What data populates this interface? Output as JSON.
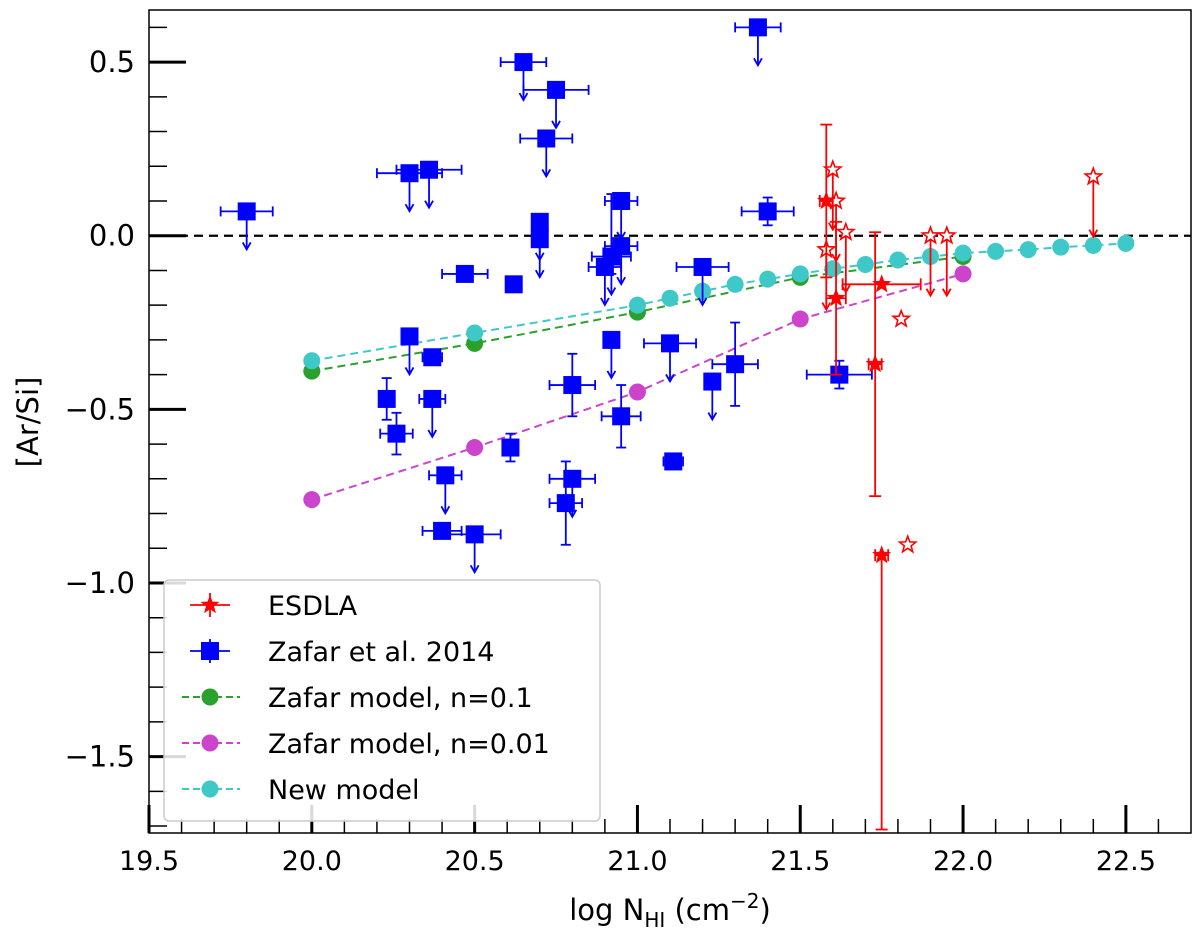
{
  "chart_data": {
    "type": "scatter",
    "xlabel": "log N",
    "xlabel_sub": "HI",
    "xlabel_unit": " (cm",
    "xlabel_unit_sup": "−2",
    "xlabel_unit_end": ")",
    "ylabel": "[Ar/Si]",
    "xlim": [
      19.5,
      22.7
    ],
    "ylim": [
      -1.72,
      0.65
    ],
    "xticks": [
      19.5,
      20.0,
      20.5,
      21.0,
      21.5,
      22.0,
      22.5
    ],
    "xtick_labels": [
      "19.5",
      "20.0",
      "20.5",
      "21.0",
      "21.5",
      "22.0",
      "22.5"
    ],
    "yticks": [
      0.5,
      0.0,
      -0.5,
      -1.0,
      -1.5
    ],
    "ytick_labels": [
      "0.5",
      "0.0",
      "−0.5",
      "−1.0",
      "−1.5"
    ],
    "reference_line": {
      "y": 0.0,
      "style": "dashed",
      "color": "#000000"
    },
    "legend": {
      "position": "lower-left",
      "entries": [
        {
          "label": "ESDLA",
          "marker": "star",
          "color": "#ff0000"
        },
        {
          "label": "Zafar et al. 2014",
          "marker": "square",
          "color": "#0000ff"
        },
        {
          "label": "Zafar model, n=0.1",
          "marker": "circle-dashed",
          "color": "#2ca02c"
        },
        {
          "label": "Zafar model, n=0.01",
          "marker": "circle-dashed",
          "color": "#cc44cc"
        },
        {
          "label": "New model",
          "marker": "circle-dashed",
          "color": "#3fc8c8"
        }
      ]
    },
    "series": [
      {
        "name": "ESDLA",
        "color": "#ff0000",
        "marker": "star",
        "detections": [
          {
            "x": 21.58,
            "y": 0.1,
            "xerr": 0.02,
            "yerr_up": 0.22,
            "yerr_low": 0.22
          },
          {
            "x": 21.61,
            "y": -0.18,
            "xerr": 0.03,
            "yerr_up": 0.22,
            "yerr_low": 0.22
          },
          {
            "x": 21.73,
            "y": -0.37,
            "xerr": 0.02,
            "yerr_up": 0.38,
            "yerr_low": 0.38
          },
          {
            "x": 21.75,
            "y": -0.14,
            "xerr": 0.12,
            "yerr_up": 0.0,
            "yerr_low": 0.0
          },
          {
            "x": 21.75,
            "y": -0.92,
            "xerr": 0.02,
            "yerr_up": 0.0,
            "yerr_low": 0.79
          }
        ],
        "upper_limits": [
          {
            "x": 21.58,
            "y": -0.04
          },
          {
            "x": 21.6,
            "y": 0.19
          },
          {
            "x": 21.61,
            "y": 0.1
          },
          {
            "x": 21.64,
            "y": 0.01
          },
          {
            "x": 21.9,
            "y": 0.0
          },
          {
            "x": 21.95,
            "y": 0.0
          },
          {
            "x": 22.4,
            "y": 0.17
          }
        ],
        "open_markers": [
          {
            "x": 21.81,
            "y": -0.24
          },
          {
            "x": 21.83,
            "y": -0.89
          }
        ]
      },
      {
        "name": "Zafar et al. 2014",
        "color": "#0000ff",
        "marker": "square",
        "points": [
          {
            "x": 19.8,
            "y": 0.07,
            "xerr": 0.08,
            "lim": true
          },
          {
            "x": 20.3,
            "y": 0.18,
            "xerr": 0.1,
            "lim": true
          },
          {
            "x": 20.36,
            "y": 0.19,
            "xerr": 0.1,
            "lim": true
          },
          {
            "x": 20.65,
            "y": 0.5,
            "xerr": 0.07,
            "lim": true
          },
          {
            "x": 20.75,
            "y": 0.42,
            "xerr": 0.1,
            "lim": true
          },
          {
            "x": 20.72,
            "y": 0.28,
            "xerr": 0.08,
            "lim": true
          },
          {
            "x": 20.7,
            "y": 0.04,
            "lim": true
          },
          {
            "x": 20.7,
            "y": -0.01,
            "lim": true
          },
          {
            "x": 21.37,
            "y": 0.6,
            "xerr": 0.07,
            "lim": true
          },
          {
            "x": 21.4,
            "y": 0.07,
            "xerr": 0.08,
            "yerr": 0.04
          },
          {
            "x": 20.47,
            "y": -0.11,
            "xerr": 0.07
          },
          {
            "x": 20.62,
            "y": -0.14
          },
          {
            "x": 20.95,
            "y": 0.1,
            "xerr": 0.05,
            "lim": true
          },
          {
            "x": 20.95,
            "y": -0.03,
            "xerr": 0.05,
            "lim": true
          },
          {
            "x": 20.92,
            "y": -0.06,
            "xerr": 0.06,
            "yerr_up": 0.18,
            "yerr_low": 0.05,
            "lim": true
          },
          {
            "x": 20.9,
            "y": -0.09,
            "xerr": 0.05,
            "lim": true
          },
          {
            "x": 21.2,
            "y": -0.09,
            "xerr": 0.08,
            "lim": true
          },
          {
            "x": 20.3,
            "y": -0.29,
            "lim": true
          },
          {
            "x": 20.92,
            "y": -0.3,
            "lim": true
          },
          {
            "x": 20.37,
            "y": -0.35,
            "xerr": 0.03
          },
          {
            "x": 21.1,
            "y": -0.31,
            "xerr": 0.08,
            "lim": true
          },
          {
            "x": 20.23,
            "y": -0.47,
            "yerr": 0.06
          },
          {
            "x": 20.37,
            "y": -0.47,
            "xerr": 0.04,
            "lim": true
          },
          {
            "x": 20.26,
            "y": -0.57,
            "xerr": 0.05,
            "yerr": 0.06
          },
          {
            "x": 20.8,
            "y": -0.43,
            "xerr": 0.07,
            "yerr": 0.09
          },
          {
            "x": 21.3,
            "y": -0.37,
            "xerr": 0.07,
            "yerr": 0.12
          },
          {
            "x": 21.23,
            "y": -0.42,
            "lim": true
          },
          {
            "x": 20.95,
            "y": -0.52,
            "xerr": 0.06,
            "yerr": 0.09
          },
          {
            "x": 21.62,
            "y": -0.4,
            "xerr": 0.1,
            "yerr": 0.04
          },
          {
            "x": 20.61,
            "y": -0.61,
            "yerr": 0.04
          },
          {
            "x": 21.11,
            "y": -0.65,
            "xerr": 0.03
          },
          {
            "x": 20.41,
            "y": -0.69,
            "xerr": 0.05,
            "lim": true
          },
          {
            "x": 20.8,
            "y": -0.7,
            "xerr": 0.07,
            "lim": true
          },
          {
            "x": 20.78,
            "y": -0.77,
            "xerr": 0.05,
            "yerr": 0.12
          },
          {
            "x": 20.4,
            "y": -0.85,
            "xerr": 0.06
          },
          {
            "x": 20.5,
            "y": -0.86,
            "xerr": 0.08,
            "lim": true
          }
        ]
      },
      {
        "name": "Zafar model, n=0.1",
        "color": "#2ca02c",
        "marker": "circle",
        "line": "dashed",
        "x": [
          20.0,
          20.5,
          21.0,
          21.5,
          22.0
        ],
        "y": [
          -0.39,
          -0.31,
          -0.22,
          -0.12,
          -0.06
        ]
      },
      {
        "name": "Zafar model, n=0.01",
        "color": "#cc44cc",
        "marker": "circle",
        "line": "dashed",
        "x": [
          20.0,
          20.5,
          21.0,
          21.5,
          22.0
        ],
        "y": [
          -0.76,
          -0.61,
          -0.45,
          -0.24,
          -0.11
        ]
      },
      {
        "name": "New model",
        "color": "#3fc8c8",
        "marker": "circle",
        "line": "dashed",
        "x": [
          20.0,
          20.5,
          21.0,
          21.1,
          21.2,
          21.3,
          21.4,
          21.5,
          21.6,
          21.7,
          21.8,
          21.9,
          22.0,
          22.1,
          22.2,
          22.3,
          22.4,
          22.5
        ],
        "y": [
          -0.36,
          -0.28,
          -0.2,
          -0.18,
          -0.16,
          -0.14,
          -0.125,
          -0.11,
          -0.095,
          -0.083,
          -0.07,
          -0.06,
          -0.05,
          -0.045,
          -0.04,
          -0.033,
          -0.028,
          -0.022
        ]
      }
    ]
  }
}
